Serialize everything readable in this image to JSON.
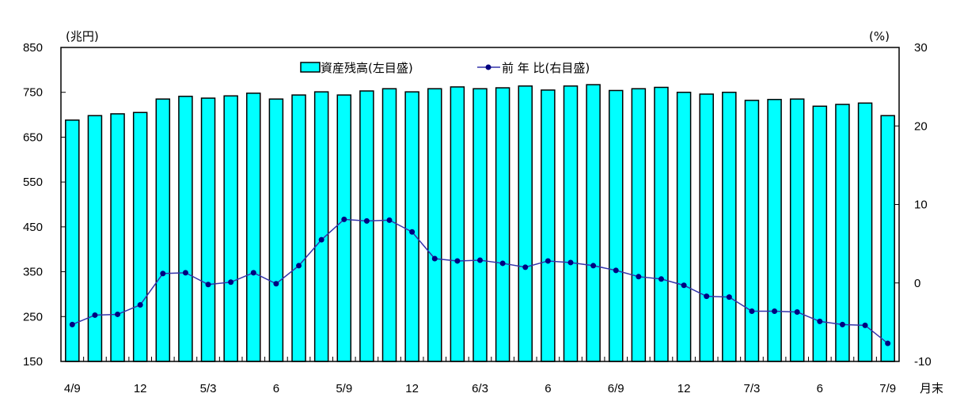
{
  "chart_data": {
    "type": "bar",
    "title": "",
    "left_unit": "(兆円)",
    "right_unit": "(%)",
    "x_suffix": "月末",
    "xlabel": "月末",
    "ylabel_left": "兆円",
    "ylabel_right": "%",
    "ylim_left": [
      150,
      850
    ],
    "ylim_right": [
      -10,
      30
    ],
    "yticks_left": [
      150,
      250,
      350,
      450,
      550,
      650,
      750,
      850
    ],
    "yticks_right": [
      -10,
      0,
      10,
      20,
      30
    ],
    "grid": false,
    "legend_position": "top-center",
    "categories": [
      "2004/9",
      "2004/10",
      "2004/11",
      "2004/12",
      "2005/1",
      "2005/2",
      "2005/3",
      "2005/4",
      "2005/5",
      "2005/6",
      "2005/7",
      "2005/8",
      "2005/9",
      "2005/10",
      "2005/11",
      "2005/12",
      "2006/1",
      "2006/2",
      "2006/3",
      "2006/4",
      "2006/5",
      "2006/6",
      "2006/7",
      "2006/8",
      "2006/9",
      "2006/10",
      "2006/11",
      "2006/12",
      "2007/1",
      "2007/2",
      "2007/3",
      "2007/4",
      "2007/5",
      "2007/6",
      "2007/7",
      "2007/8",
      "2007/9"
    ],
    "tick_labels": [
      {
        "index": 0,
        "label": "4/9"
      },
      {
        "index": 3,
        "label": "12"
      },
      {
        "index": 6,
        "label": "5/3"
      },
      {
        "index": 9,
        "label": "6"
      },
      {
        "index": 12,
        "label": "5/9"
      },
      {
        "index": 15,
        "label": "12"
      },
      {
        "index": 18,
        "label": "6/3"
      },
      {
        "index": 21,
        "label": "6"
      },
      {
        "index": 24,
        "label": "6/9"
      },
      {
        "index": 27,
        "label": "12"
      },
      {
        "index": 30,
        "label": "7/3"
      },
      {
        "index": 33,
        "label": "6"
      },
      {
        "index": 36,
        "label": "7/9"
      }
    ],
    "series": [
      {
        "name": "資産残高(左目盛)",
        "type": "bar",
        "axis": "left",
        "color": "#00ffff",
        "values": [
          688,
          698,
          702,
          705,
          735,
          741,
          737,
          742,
          748,
          735,
          744,
          751,
          744,
          753,
          758,
          751,
          758,
          762,
          758,
          760,
          764,
          755,
          764,
          767,
          754,
          758,
          761,
          750,
          746,
          750,
          732,
          734,
          735,
          719,
          723,
          726,
          698
        ]
      },
      {
        "name": "前 年 比(右目盛)",
        "type": "line",
        "axis": "right",
        "color": "#000080",
        "values": [
          -5.3,
          -4.1,
          -4.0,
          -2.8,
          1.2,
          1.3,
          -0.2,
          0.1,
          1.3,
          -0.1,
          2.2,
          5.5,
          8.1,
          7.9,
          8.0,
          6.5,
          3.1,
          2.8,
          2.9,
          2.5,
          2.0,
          2.8,
          2.6,
          2.2,
          1.6,
          0.8,
          0.5,
          -0.3,
          -1.7,
          -1.8,
          -3.6,
          -3.6,
          -3.7,
          -4.9,
          -5.3,
          -5.4,
          -7.7
        ]
      }
    ]
  },
  "legend": {
    "bar_label": "資産残高(左目盛)",
    "line_label": "前 年 比(右目盛)"
  },
  "colors": {
    "bar_fill": "#00ffff",
    "bar_stroke": "#000000",
    "line": "#3333aa",
    "marker": "#000080"
  }
}
